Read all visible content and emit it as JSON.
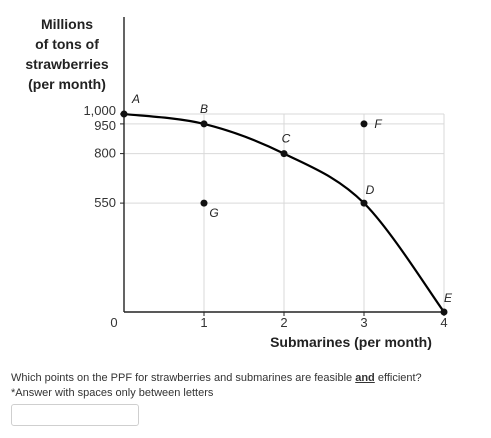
{
  "question": {
    "text_before": "Which points on the PPF for strawberries and submarines are feasible ",
    "emphasis": "and",
    "text_after": " efficient?",
    "note": "*Answer with spaces only between letters",
    "answer_value": "",
    "answer_placeholder": ""
  },
  "chart_data": {
    "type": "line",
    "ylabel": [
      "Millions",
      "of tons of",
      "strawberries",
      "(per month)"
    ],
    "xlabel": "Submarines (per month)",
    "x_ticks": [
      {
        "value": 0,
        "label": "0"
      },
      {
        "value": 1,
        "label": "1"
      },
      {
        "value": 2,
        "label": "2"
      },
      {
        "value": 3,
        "label": "3"
      },
      {
        "value": 4,
        "label": "4"
      }
    ],
    "y_ticks": [
      {
        "value": 1000,
        "label": "1,000"
      },
      {
        "value": 950,
        "label": "950"
      },
      {
        "value": 800,
        "label": "800"
      },
      {
        "value": 550,
        "label": "550"
      }
    ],
    "xlim": [
      0,
      4
    ],
    "ylim": [
      0,
      1000
    ],
    "ppf_curve": [
      {
        "x": 0,
        "y": 1000
      },
      {
        "x": 1,
        "y": 950
      },
      {
        "x": 2,
        "y": 800
      },
      {
        "x": 3,
        "y": 550
      },
      {
        "x": 4,
        "y": 0
      }
    ],
    "points": [
      {
        "label": "A",
        "x": 0,
        "y": 1000
      },
      {
        "label": "B",
        "x": 1,
        "y": 950
      },
      {
        "label": "C",
        "x": 2,
        "y": 800
      },
      {
        "label": "D",
        "x": 3,
        "y": 550
      },
      {
        "label": "E",
        "x": 4,
        "y": 0
      },
      {
        "label": "F",
        "x": 3,
        "y": 950
      },
      {
        "label": "G",
        "x": 1,
        "y": 550
      }
    ],
    "colors": {
      "curve": "#000000",
      "grid": "#d9d9d9",
      "axis": "#222222"
    }
  }
}
